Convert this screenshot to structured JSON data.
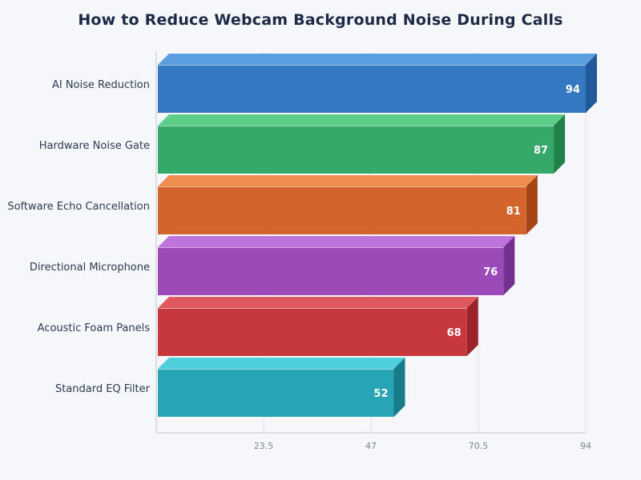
{
  "chart_data": {
    "type": "bar",
    "orientation": "horizontal",
    "title": "How to Reduce Webcam Background Noise During Calls",
    "xlabel": "",
    "ylabel": "",
    "categories": [
      "AI Noise Reduction",
      "Hardware Noise Gate",
      "Software Echo Cancellation",
      "Directional Microphone",
      "Acoustic Foam Panels",
      "Standard EQ Filter"
    ],
    "values": [
      94,
      87,
      81,
      76,
      68,
      52
    ],
    "xlim": [
      0,
      94
    ],
    "xticks": [
      23.5,
      47,
      70.5,
      94
    ],
    "xtick_labels": [
      "23.5",
      "47",
      "70.5",
      "94"
    ],
    "grid": "vertical",
    "legend": "none",
    "style": "3d-bars",
    "colors": [
      {
        "front": "#3478c1",
        "top": "#5a9fe0",
        "side": "#22599a"
      },
      {
        "front": "#35a96a",
        "top": "#5bcf8a",
        "side": "#218249"
      },
      {
        "front": "#d3652c",
        "top": "#f08c50",
        "side": "#a64618"
      },
      {
        "front": "#9a4bb8",
        "top": "#bf74dc",
        "side": "#74308f"
      },
      {
        "front": "#c6373e",
        "top": "#e0585f",
        "side": "#9b2229"
      },
      {
        "front": "#27a5b5",
        "top": "#4fcfdc",
        "side": "#177c89"
      }
    ]
  }
}
